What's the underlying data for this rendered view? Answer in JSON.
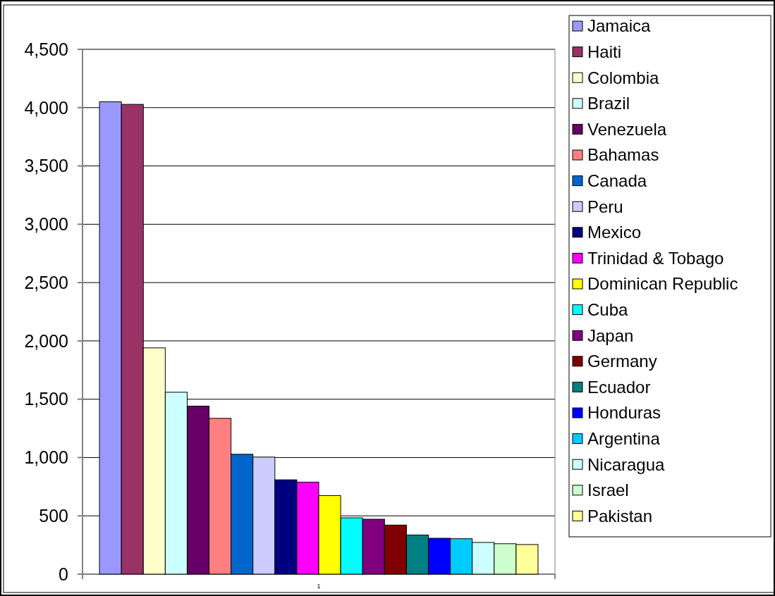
{
  "chart_data": {
    "type": "bar",
    "categories": [
      "1"
    ],
    "series": [
      {
        "name": "Jamaica",
        "color": "#9999ff",
        "values": [
          4050
        ]
      },
      {
        "name": "Haiti",
        "color": "#993366",
        "values": [
          4028
        ]
      },
      {
        "name": "Colombia",
        "color": "#ffffcc",
        "values": [
          1940
        ]
      },
      {
        "name": "Brazil",
        "color": "#ccffff",
        "values": [
          1560
        ]
      },
      {
        "name": "Venezuela",
        "color": "#660066",
        "values": [
          1441
        ]
      },
      {
        "name": "Bahamas",
        "color": "#ff8080",
        "values": [
          1336
        ]
      },
      {
        "name": "Canada",
        "color": "#0066cc",
        "values": [
          1028
        ]
      },
      {
        "name": "Peru",
        "color": "#ccccff",
        "values": [
          1004
        ]
      },
      {
        "name": "Mexico",
        "color": "#000080",
        "values": [
          809
        ]
      },
      {
        "name": "Trinidad & Tobago",
        "color": "#ff00ff",
        "values": [
          789
        ]
      },
      {
        "name": "Dominican Republic",
        "color": "#ffff00",
        "values": [
          674
        ]
      },
      {
        "name": "Cuba",
        "color": "#00ffff",
        "values": [
          483
        ]
      },
      {
        "name": "Japan",
        "color": "#800080",
        "values": [
          471
        ]
      },
      {
        "name": "Germany",
        "color": "#800000",
        "values": [
          421
        ]
      },
      {
        "name": "Ecuador",
        "color": "#008080",
        "values": [
          336
        ]
      },
      {
        "name": "Honduras",
        "color": "#0000ff",
        "values": [
          308
        ]
      },
      {
        "name": "Argentina",
        "color": "#00ccff",
        "values": [
          304
        ]
      },
      {
        "name": "Nicaragua",
        "color": "#ccffff",
        "values": [
          272
        ]
      },
      {
        "name": "Israel",
        "color": "#ccffcc",
        "values": [
          261
        ]
      },
      {
        "name": "Pakistan",
        "color": "#ffff99",
        "values": [
          254
        ]
      }
    ],
    "ylim": [
      0,
      4500
    ],
    "yticks": [
      {
        "value": 0,
        "label": "0"
      },
      {
        "value": 500,
        "label": "500"
      },
      {
        "value": 1000,
        "label": "1,000"
      },
      {
        "value": 1500,
        "label": "1,500"
      },
      {
        "value": 2000,
        "label": "2,000"
      },
      {
        "value": 2500,
        "label": "2,500"
      },
      {
        "value": 3000,
        "label": "3,000"
      },
      {
        "value": 3500,
        "label": "3,500"
      },
      {
        "value": 4000,
        "label": "4,000"
      },
      {
        "value": 4500,
        "label": "4,500"
      }
    ],
    "grid": "y",
    "legend": "right"
  }
}
